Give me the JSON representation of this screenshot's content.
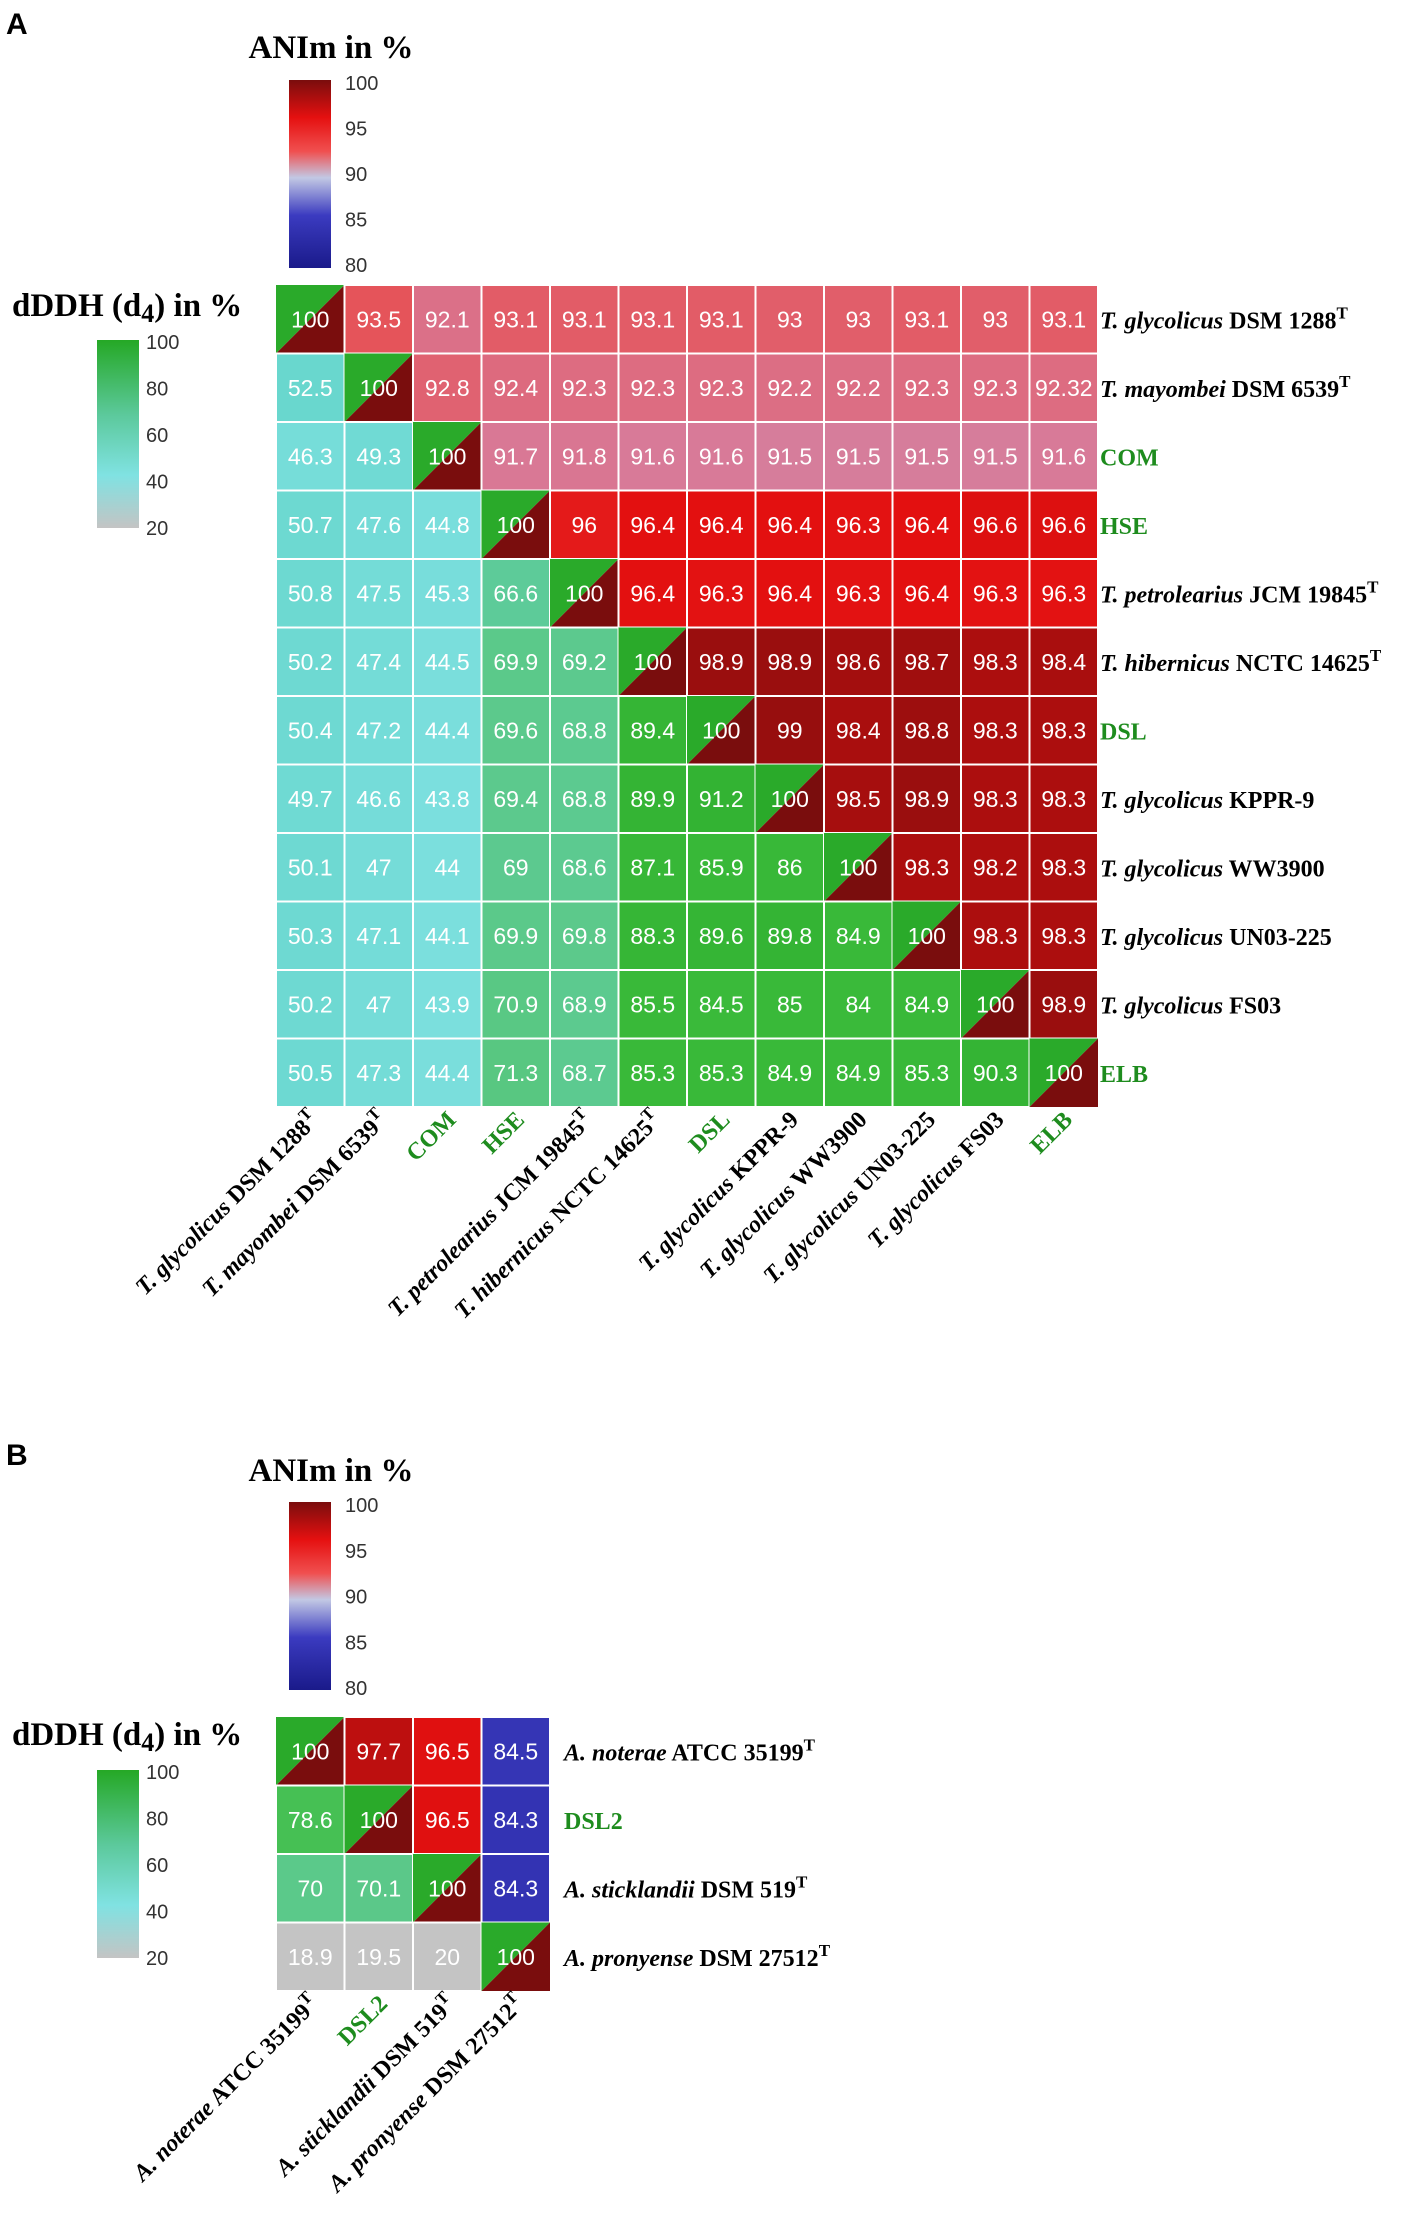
{
  "colors": {
    "anim_scale": [
      "#1a1a8a",
      "#3b3bc0",
      "#b8c4e0",
      "#f04545",
      "#e51010",
      "#7a0d0d"
    ],
    "dddh_scale": [
      "#c4c4c4",
      "#7ee0e0",
      "#55c7a4",
      "#2aaa2a"
    ],
    "highlight_label": "#1e8c1e"
  },
  "legend_labels": {
    "anim_title": "ANIm in %",
    "dddh_title_main": "dDDH (d",
    "dddh_title_sub": "4",
    "dddh_title_end": ") in %",
    "anim_ticks": [
      "100",
      "95",
      "90",
      "85",
      "80"
    ],
    "dddh_ticks": [
      "100",
      "80",
      "60",
      "40",
      "20"
    ]
  },
  "chart_data": [
    {
      "type": "heatmap",
      "panel": "A",
      "anim_range": [
        80,
        100
      ],
      "dddh_range": [
        20,
        100
      ],
      "labels": [
        {
          "italic": "T. glycolicus",
          "rest": " DSM 1288",
          "sup": "T",
          "highlight": false
        },
        {
          "italic": "T. mayombei",
          "rest": " DSM 6539",
          "sup": "T",
          "highlight": false
        },
        {
          "italic": "",
          "rest": "COM",
          "sup": "",
          "highlight": true
        },
        {
          "italic": "",
          "rest": "HSE",
          "sup": "",
          "highlight": true
        },
        {
          "italic": "T. petrolearius",
          "rest": " JCM 19845",
          "sup": "T",
          "highlight": false
        },
        {
          "italic": "T. hibernicus",
          "rest": " NCTC 14625",
          "sup": "T",
          "highlight": false
        },
        {
          "italic": "",
          "rest": "DSL",
          "sup": "",
          "highlight": true
        },
        {
          "italic": "T. glycolicus",
          "rest": " KPPR-9",
          "sup": "",
          "highlight": false
        },
        {
          "italic": "T. glycolicus",
          "rest": " WW3900",
          "sup": "",
          "highlight": false
        },
        {
          "italic": "T. glycolicus",
          "rest": " UN03-225",
          "sup": "",
          "highlight": false
        },
        {
          "italic": "T. glycolicus",
          "rest": " FS03",
          "sup": "",
          "highlight": false
        },
        {
          "italic": "",
          "rest": "ELB",
          "sup": "",
          "highlight": true
        }
      ],
      "matrix": [
        [
          "100",
          "93.5",
          "92.1",
          "93.1",
          "93.1",
          "93.1",
          "93.1",
          "93",
          "93",
          "93.1",
          "93",
          "93.1"
        ],
        [
          "52.5",
          "100",
          "92.8",
          "92.4",
          "92.3",
          "92.3",
          "92.3",
          "92.2",
          "92.2",
          "92.3",
          "92.3",
          "92.32"
        ],
        [
          "46.3",
          "49.3",
          "100",
          "91.7",
          "91.8",
          "91.6",
          "91.6",
          "91.5",
          "91.5",
          "91.5",
          "91.5",
          "91.6"
        ],
        [
          "50.7",
          "47.6",
          "44.8",
          "100",
          "96",
          "96.4",
          "96.4",
          "96.4",
          "96.3",
          "96.4",
          "96.6",
          "96.6"
        ],
        [
          "50.8",
          "47.5",
          "45.3",
          "66.6",
          "100",
          "96.4",
          "96.3",
          "96.4",
          "96.3",
          "96.4",
          "96.3",
          "96.3"
        ],
        [
          "50.2",
          "47.4",
          "44.5",
          "69.9",
          "69.2",
          "100",
          "98.9",
          "98.9",
          "98.6",
          "98.7",
          "98.3",
          "98.4"
        ],
        [
          "50.4",
          "47.2",
          "44.4",
          "69.6",
          "68.8",
          "89.4",
          "100",
          "99",
          "98.4",
          "98.8",
          "98.3",
          "98.3"
        ],
        [
          "49.7",
          "46.6",
          "43.8",
          "69.4",
          "68.8",
          "89.9",
          "91.2",
          "100",
          "98.5",
          "98.9",
          "98.3",
          "98.3"
        ],
        [
          "50.1",
          "47",
          "44",
          "69",
          "68.6",
          "87.1",
          "85.9",
          "86",
          "100",
          "98.3",
          "98.2",
          "98.3"
        ],
        [
          "50.3",
          "47.1",
          "44.1",
          "69.9",
          "69.8",
          "88.3",
          "89.6",
          "89.8",
          "84.9",
          "100",
          "98.3",
          "98.3"
        ],
        [
          "50.2",
          "47",
          "43.9",
          "70.9",
          "68.9",
          "85.5",
          "84.5",
          "85",
          "84",
          "84.9",
          "100",
          "98.9"
        ],
        [
          "50.5",
          "47.3",
          "44.4",
          "71.3",
          "68.7",
          "85.3",
          "85.3",
          "84.9",
          "84.9",
          "85.3",
          "90.3",
          "100"
        ]
      ]
    },
    {
      "type": "heatmap",
      "panel": "B",
      "anim_range": [
        80,
        100
      ],
      "dddh_range": [
        20,
        100
      ],
      "labels": [
        {
          "italic": "A. noterae",
          "rest": " ATCC 35199",
          "sup": "T",
          "highlight": false
        },
        {
          "italic": "",
          "rest": "DSL2",
          "sup": "",
          "highlight": true
        },
        {
          "italic": "A. sticklandii",
          "rest": " DSM 519",
          "sup": "T",
          "highlight": false
        },
        {
          "italic": "A. pronyense",
          "rest": " DSM 27512",
          "sup": "T",
          "highlight": false
        }
      ],
      "matrix": [
        [
          "100",
          "97.7",
          "96.5",
          "84.5"
        ],
        [
          "78.6",
          "100",
          "96.5",
          "84.3"
        ],
        [
          "70",
          "70.1",
          "100",
          "84.3"
        ],
        [
          "18.9",
          "19.5",
          "20",
          "100"
        ]
      ]
    }
  ]
}
